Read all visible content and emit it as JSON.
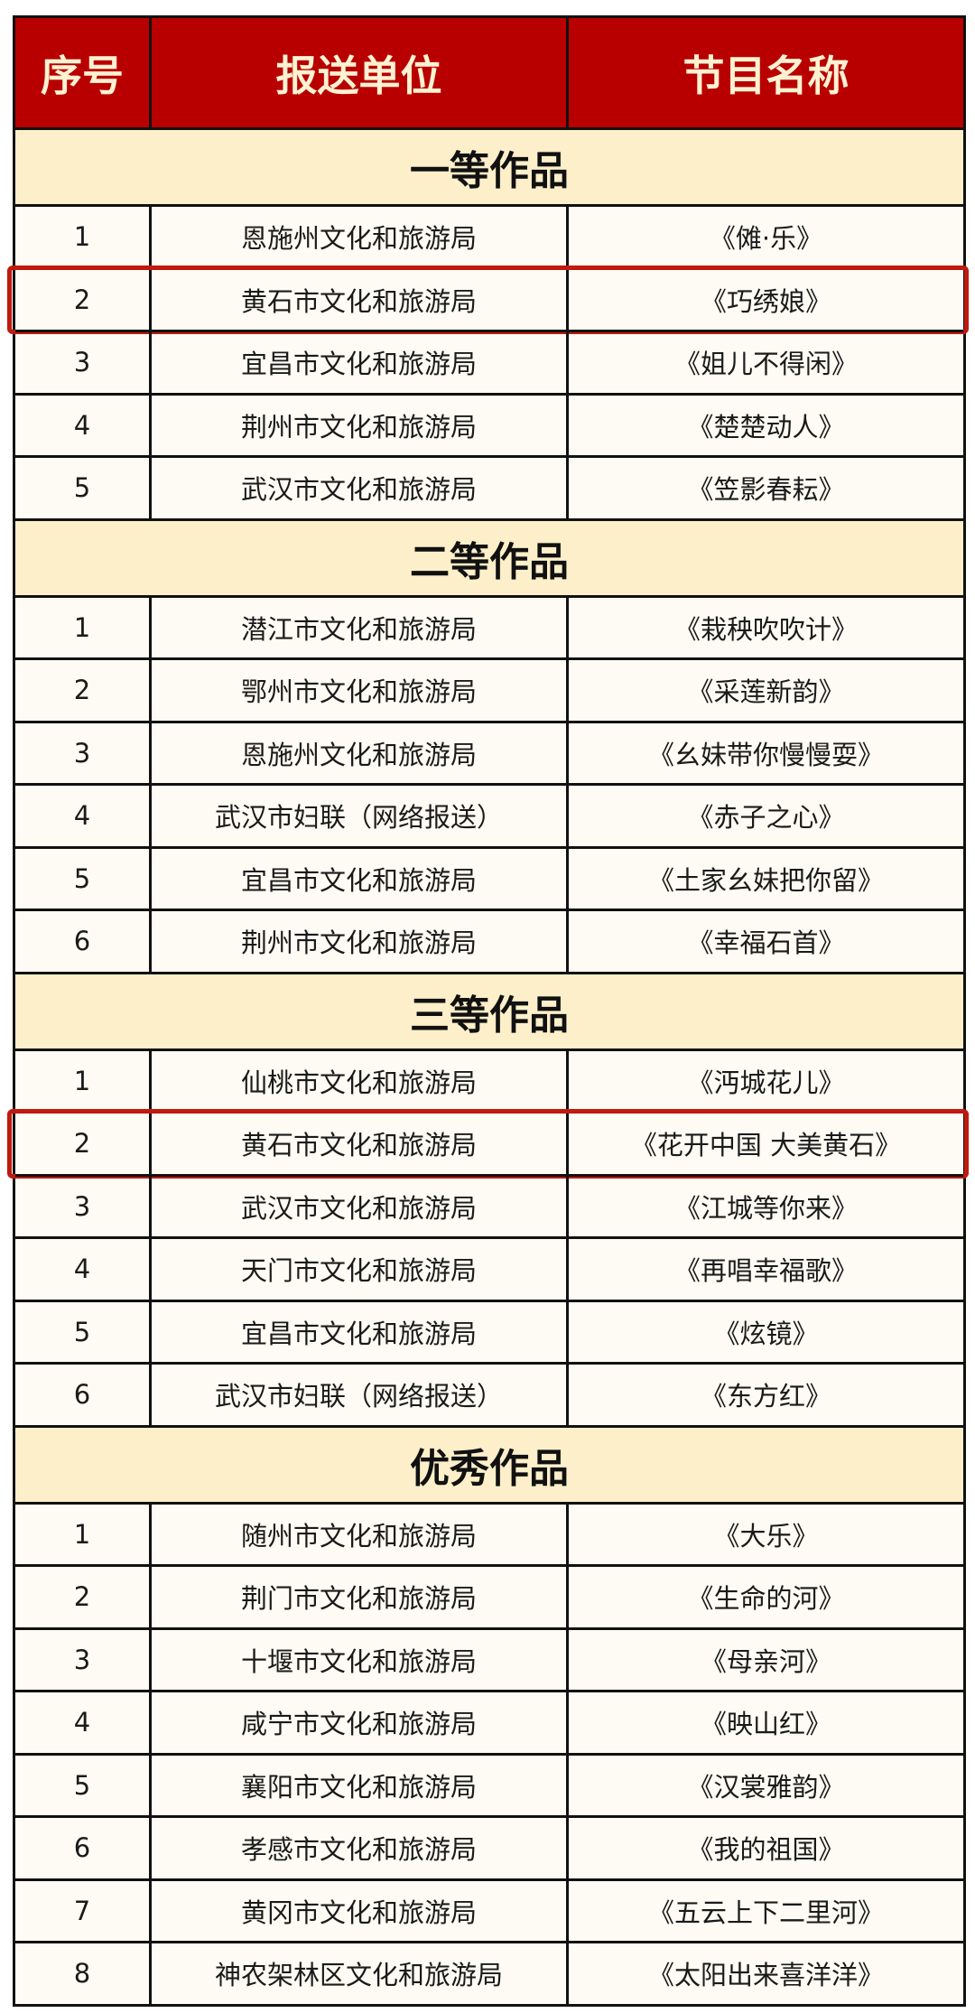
{
  "header": {
    "col_index": "序号",
    "col_unit": "报送单位",
    "col_program": "节目名称"
  },
  "colors": {
    "header_bg": "#b80000",
    "header_text": "#fff2d2",
    "section_bg": "#fcefc9",
    "row_bg": "#fdfbf3",
    "highlight": "#c0190f"
  },
  "sections": [
    {
      "title": "一等作品",
      "rows": [
        {
          "no": "1",
          "unit": "恩施州文化和旅游局",
          "program": "《傩·乐》",
          "highlighted": false
        },
        {
          "no": "2",
          "unit": "黄石市文化和旅游局",
          "program": "《巧绣娘》",
          "highlighted": true
        },
        {
          "no": "3",
          "unit": "宜昌市文化和旅游局",
          "program": "《姐儿不得闲》",
          "highlighted": false
        },
        {
          "no": "4",
          "unit": "荆州市文化和旅游局",
          "program": "《楚楚动人》",
          "highlighted": false
        },
        {
          "no": "5",
          "unit": "武汉市文化和旅游局",
          "program": "《笠影春耘》",
          "highlighted": false
        }
      ]
    },
    {
      "title": "二等作品",
      "rows": [
        {
          "no": "1",
          "unit": "潜江市文化和旅游局",
          "program": "《栽秧吹吹计》",
          "highlighted": false
        },
        {
          "no": "2",
          "unit": "鄂州市文化和旅游局",
          "program": "《采莲新韵》",
          "highlighted": false
        },
        {
          "no": "3",
          "unit": "恩施州文化和旅游局",
          "program": "《幺妹带你慢慢耍》",
          "highlighted": false
        },
        {
          "no": "4",
          "unit": "武汉市妇联（网络报送）",
          "program": "《赤子之心》",
          "highlighted": false
        },
        {
          "no": "5",
          "unit": "宜昌市文化和旅游局",
          "program": "《土家幺妹把你留》",
          "highlighted": false
        },
        {
          "no": "6",
          "unit": "荆州市文化和旅游局",
          "program": "《幸福石首》",
          "highlighted": false
        }
      ]
    },
    {
      "title": "三等作品",
      "rows": [
        {
          "no": "1",
          "unit": "仙桃市文化和旅游局",
          "program": "《沔城花儿》",
          "highlighted": false
        },
        {
          "no": "2",
          "unit": "黄石市文化和旅游局",
          "program": "《花开中国 大美黄石》",
          "highlighted": true
        },
        {
          "no": "3",
          "unit": "武汉市文化和旅游局",
          "program": "《江城等你来》",
          "highlighted": false
        },
        {
          "no": "4",
          "unit": "天门市文化和旅游局",
          "program": "《再唱幸福歌》",
          "highlighted": false
        },
        {
          "no": "5",
          "unit": "宜昌市文化和旅游局",
          "program": "《炫镜》",
          "highlighted": false
        },
        {
          "no": "6",
          "unit": "武汉市妇联（网络报送）",
          "program": "《东方红》",
          "highlighted": false
        }
      ]
    },
    {
      "title": "优秀作品",
      "rows": [
        {
          "no": "1",
          "unit": "随州市文化和旅游局",
          "program": "《大乐》",
          "highlighted": false
        },
        {
          "no": "2",
          "unit": "荆门市文化和旅游局",
          "program": "《生命的河》",
          "highlighted": false
        },
        {
          "no": "3",
          "unit": "十堰市文化和旅游局",
          "program": "《母亲河》",
          "highlighted": false
        },
        {
          "no": "4",
          "unit": "咸宁市文化和旅游局",
          "program": "《映山红》",
          "highlighted": false
        },
        {
          "no": "5",
          "unit": "襄阳市文化和旅游局",
          "program": "《汉裳雅韵》",
          "highlighted": false
        },
        {
          "no": "6",
          "unit": "孝感市文化和旅游局",
          "program": "《我的祖国》",
          "highlighted": false
        },
        {
          "no": "7",
          "unit": "黄冈市文化和旅游局",
          "program": "《五云上下二里河》",
          "highlighted": false
        },
        {
          "no": "8",
          "unit": "神农架林区文化和旅游局",
          "program": "《太阳出来喜洋洋》",
          "highlighted": false
        }
      ]
    }
  ]
}
